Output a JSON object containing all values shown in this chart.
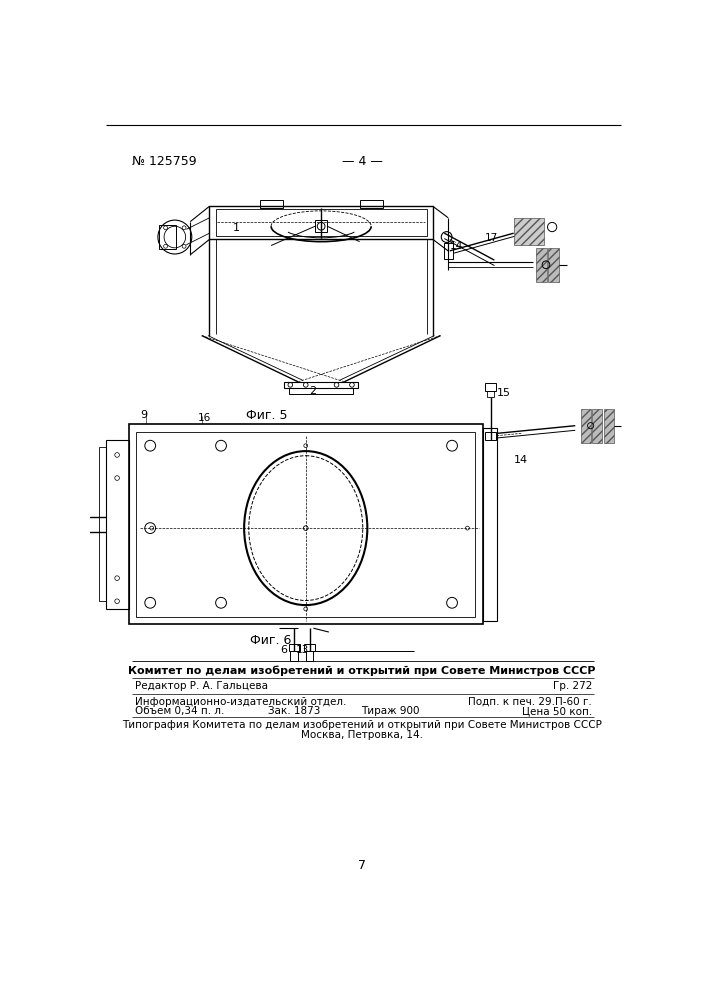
{
  "page_number_text": "№ 125759",
  "page_center_text": "— 4 —",
  "fig5_label": "Фиг. 5",
  "fig6_label": "Фиг. 6",
  "footer_line1": "Комитет по делам изобретений и открытий при Совете Министров СССР",
  "footer_line2_left": "Редактор Р. А. Гальцева",
  "footer_line2_right": "Гр. 272",
  "footer_line3_left": "Информационно-издательский отдел.",
  "footer_line3_right": "Подп. к печ. 29.П-60 г.",
  "footer_line4_left": "Объем 0,34 п. л.",
  "footer_line4_mid1": "Зак. 1873",
  "footer_line4_mid2": "Тираж 900",
  "footer_line4_right": "Цена 50 коп.",
  "footer_line5": "Типография Комитета по делам изобретений и открытий при Совете Министров СССР",
  "footer_line6": "Москва, Петровка, 14.",
  "page_num_bottom": "7",
  "bg_color": "#ffffff",
  "line_color": "#000000",
  "text_color": "#000000",
  "gray_color": "#888888"
}
